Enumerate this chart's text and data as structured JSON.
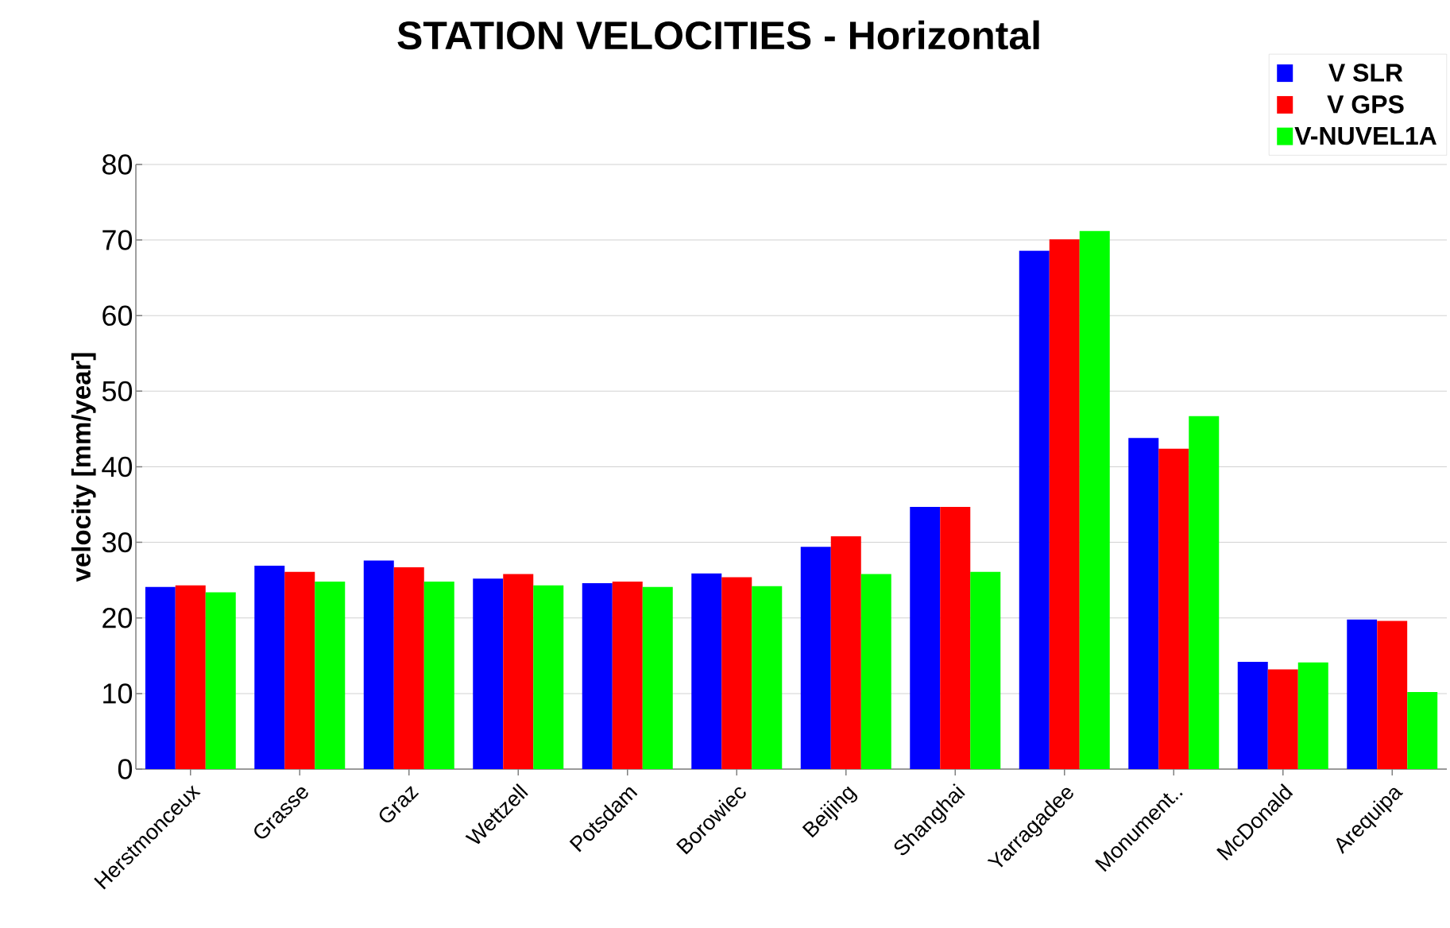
{
  "chart_data": {
    "type": "bar",
    "title": "STATION VELOCITIES - Horizontal",
    "ylabel": "velocity [mm/year]",
    "categories": [
      "Herstmonceux",
      "Grasse",
      "Graz",
      "Wettzell",
      "Potsdam",
      "Borowiec",
      "Beijing",
      "Shanghai",
      "Yarragadee",
      "Monument..",
      "McDonald",
      "Arequipa"
    ],
    "series": [
      {
        "name": "V SLR",
        "color": "#0000ff",
        "values": [
          24.1,
          26.9,
          27.6,
          25.2,
          24.6,
          25.9,
          29.4,
          34.7,
          68.6,
          43.8,
          14.2,
          19.8
        ]
      },
      {
        "name": "V GPS",
        "color": "#ff0000",
        "values": [
          24.3,
          26.1,
          26.7,
          25.8,
          24.8,
          25.4,
          30.8,
          34.7,
          70.1,
          42.4,
          13.2,
          19.6
        ]
      },
      {
        "name": "V-NUVEL1A",
        "color": "#00ff00",
        "values": [
          23.4,
          24.8,
          24.8,
          24.3,
          24.1,
          24.2,
          25.8,
          26.1,
          71.2,
          46.7,
          14.1,
          10.2
        ]
      }
    ],
    "ylim": [
      0,
      80
    ],
    "yticks": [
      0,
      10,
      20,
      30,
      40,
      50,
      60,
      70,
      80
    ],
    "grid": "y",
    "legend": "top right"
  }
}
